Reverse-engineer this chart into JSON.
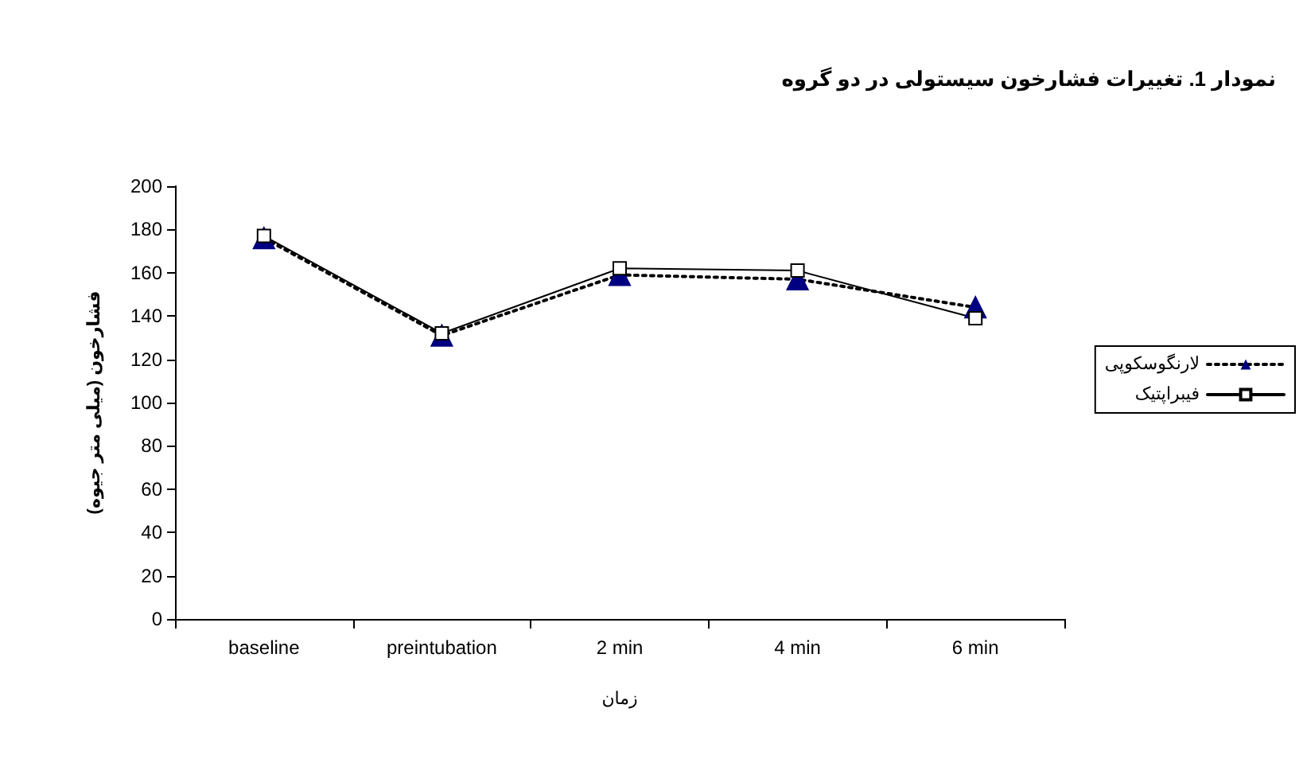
{
  "chart_data": {
    "type": "line",
    "title": "نمودار 1. تغییرات فشارخون سیستولی در دو گروه",
    "xlabel": "زمان",
    "ylabel": "فشارخون (میلی متر جیوه)",
    "categories": [
      "baseline",
      "preintubation",
      "2 min",
      "4 min",
      "6 min"
    ],
    "series": [
      {
        "name": "لارنگوسکوپی",
        "color": "#000080",
        "values": [
          176,
          131,
          159,
          157,
          144
        ],
        "marker": "triangle",
        "line_style": "dotted"
      },
      {
        "name": "فیبراپتیک",
        "color": "#000000",
        "values": [
          177,
          132,
          162,
          161,
          139
        ],
        "marker": "square",
        "line_style": "solid"
      }
    ],
    "ylim": [
      0,
      200
    ],
    "yticks": [
      0,
      20,
      40,
      60,
      80,
      100,
      120,
      140,
      160,
      180,
      200
    ],
    "grid": false,
    "legend": "right"
  }
}
